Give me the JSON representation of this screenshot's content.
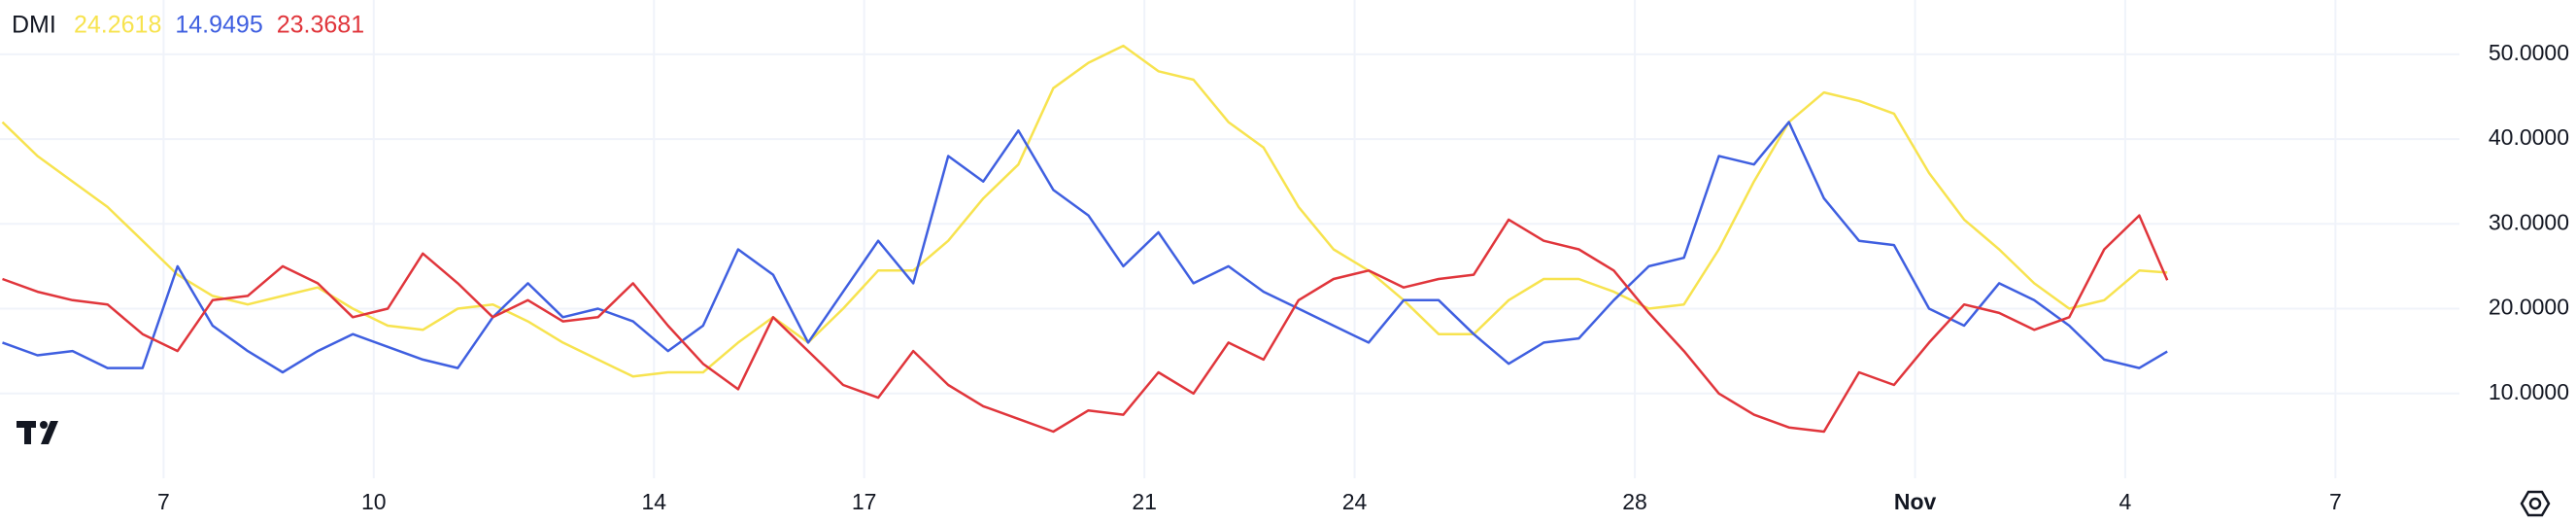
{
  "chart_data": {
    "type": "line",
    "title": "DMI",
    "x": [
      4.7,
      5.2,
      5.7,
      6.2,
      6.7,
      7.2,
      7.7,
      8.2,
      8.7,
      9.2,
      9.7,
      10.2,
      10.7,
      11.2,
      11.7,
      12.2,
      12.7,
      13.2,
      13.7,
      14.2,
      14.7,
      15.2,
      15.7,
      16.2,
      16.7,
      17.2,
      17.7,
      18.2,
      18.7,
      19.2,
      19.7,
      20.2,
      20.7,
      21.2,
      21.7,
      22.2,
      22.7,
      23.2,
      23.7,
      24.2,
      24.7,
      25.2,
      25.7,
      26.2,
      26.7,
      27.2,
      27.7,
      28.2,
      28.7,
      29.2,
      29.7,
      30.2,
      30.7,
      31.2,
      31.7,
      32.2,
      32.7,
      33.2,
      33.7,
      34.2,
      34.7,
      35.2,
      35.6
    ],
    "series": [
      {
        "color": "#f7e34f",
        "current": 24.2618,
        "values": [
          42,
          38,
          35,
          32,
          28,
          24,
          21.5,
          20.5,
          21.5,
          22.5,
          20,
          18,
          17.5,
          20,
          20.5,
          18.5,
          16,
          14,
          12,
          12.5,
          12.5,
          16,
          19,
          16,
          20,
          24.5,
          24.5,
          28,
          33,
          37,
          46,
          49,
          51,
          48,
          47,
          42,
          39,
          32,
          27,
          24.5,
          21,
          17,
          17,
          21,
          23.5,
          23.5,
          22,
          20,
          20.5,
          27,
          35,
          42,
          45.5,
          44.5,
          43,
          36,
          30.5,
          27,
          23,
          20,
          21,
          24.5,
          24.2618
        ]
      },
      {
        "color": "#3f5fe0",
        "current": 14.9495,
        "values": [
          16,
          14.5,
          15,
          13,
          13,
          25,
          18,
          15,
          12.5,
          15,
          17,
          15.5,
          14,
          13,
          19,
          23,
          19,
          20,
          18.5,
          15,
          18,
          27,
          24,
          16,
          22,
          28,
          23,
          38,
          35,
          41,
          34,
          31,
          25,
          29,
          23,
          25,
          22,
          20,
          18,
          16,
          21,
          21,
          17,
          13.5,
          16,
          16.5,
          21,
          25,
          26,
          38,
          37,
          42,
          33,
          28,
          27.5,
          20,
          18,
          23,
          21,
          18,
          14,
          13,
          14.9495
        ]
      },
      {
        "color": "#e0353b",
        "current": 23.3681,
        "values": [
          23.5,
          22,
          21,
          20.5,
          17,
          15,
          21,
          21.5,
          25,
          23,
          19,
          20,
          26.5,
          23,
          19,
          21,
          18.5,
          19,
          23,
          18,
          13.5,
          10.5,
          19,
          15,
          11,
          9.5,
          15,
          11,
          8.5,
          7,
          5.5,
          8,
          7.5,
          12.5,
          10,
          16,
          14,
          21,
          23.5,
          24.5,
          22.5,
          23.5,
          24,
          30.5,
          28,
          27,
          24.5,
          19.5,
          15,
          10,
          7.5,
          6,
          5.5,
          12.5,
          11,
          16,
          20.5,
          19.5,
          17.5,
          19,
          27,
          31,
          23.3681
        ]
      }
    ],
    "xlim": [
      4.665,
      39.77
    ],
    "xticks": [
      7,
      10,
      14,
      17,
      21,
      24,
      28,
      {
        "value": 32,
        "label": "Nov"
      },
      {
        "value": 35,
        "label": "4"
      },
      {
        "value": 38,
        "label": "7"
      }
    ],
    "ylim": [
      0,
      56.4
    ],
    "yticks": [
      {
        "value": 10,
        "label": "10.0000"
      },
      {
        "value": 20,
        "label": "20.0000"
      },
      {
        "value": 30,
        "label": "30.0000"
      },
      {
        "value": 40,
        "label": "40.0000"
      },
      {
        "value": 50,
        "label": "50.0000"
      }
    ],
    "grid": true
  }
}
